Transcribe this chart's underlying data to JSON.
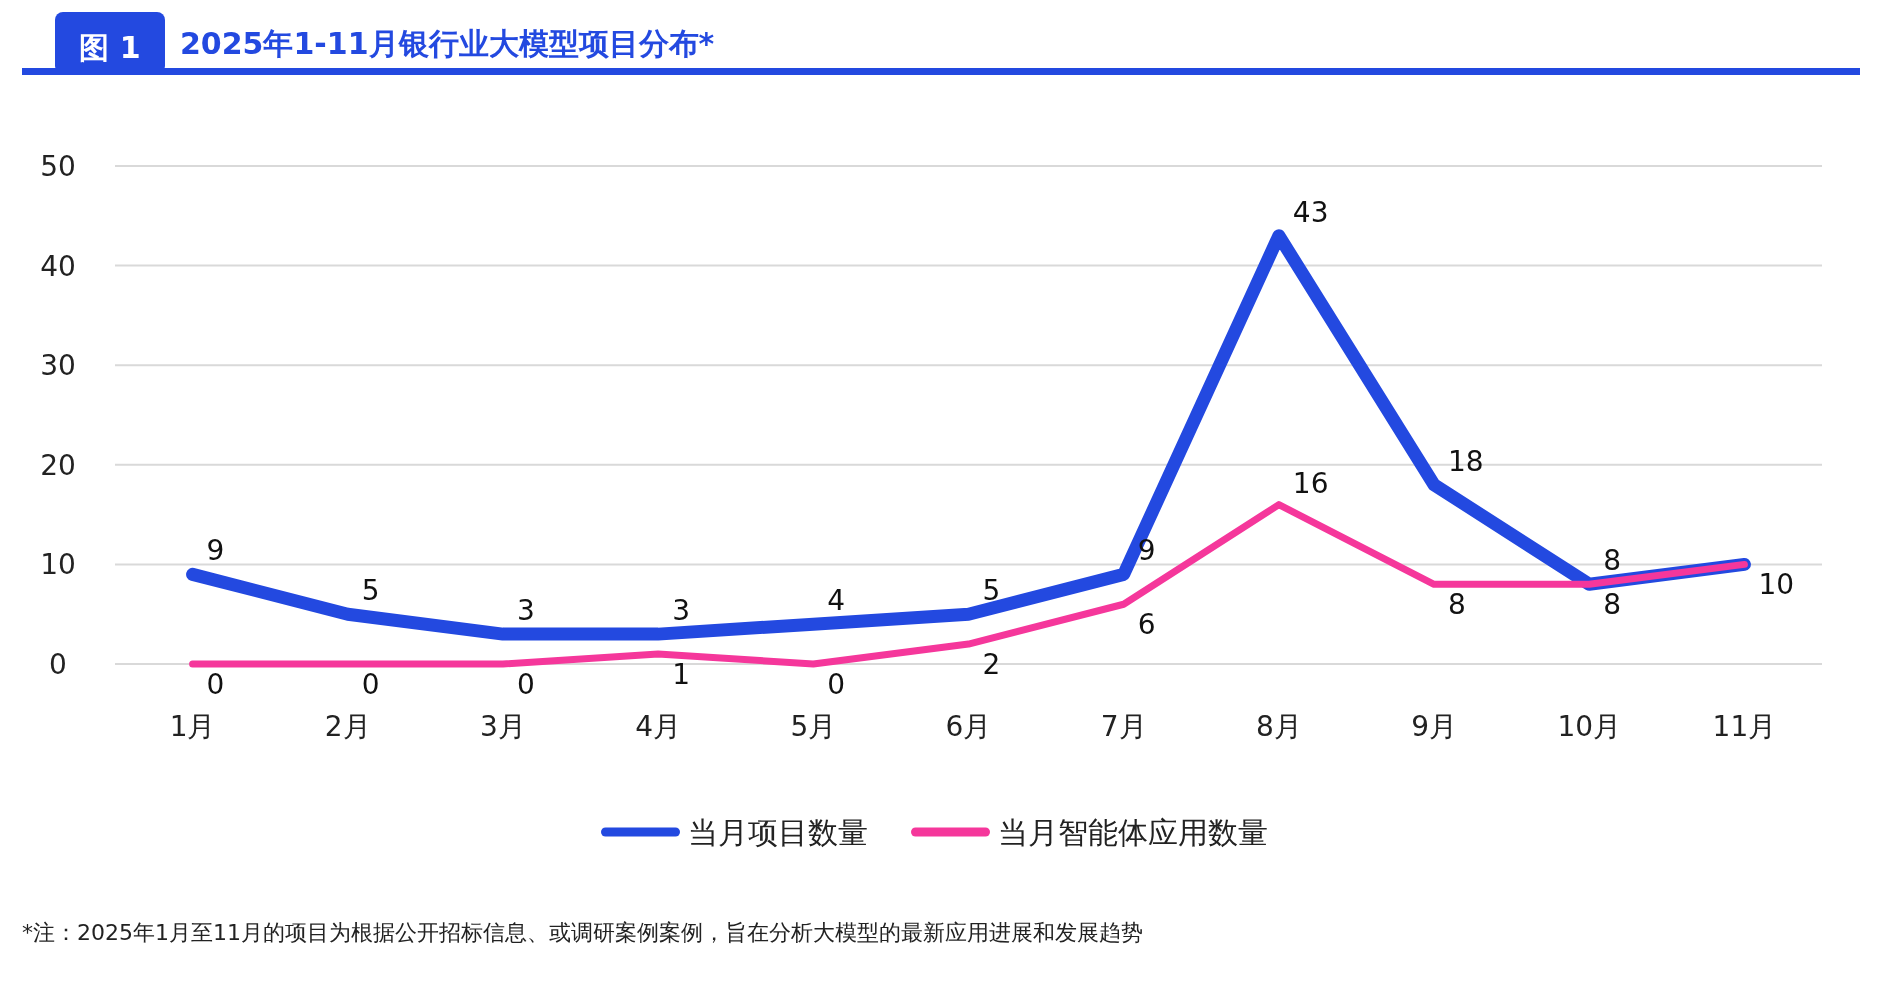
{
  "chart_data": {
    "type": "line",
    "title": "2025年1-11月银行业大模型项目分布*",
    "annotations": [
      "图 1",
      "*注：2025年1月至11月的项目为根据公开招标信息、或调研案例案例，旨在分析大模型的最新应用进展和发展趋势"
    ],
    "categories": [
      "1月",
      "2月",
      "3月",
      "4月",
      "5月",
      "6月",
      "7月",
      "8月",
      "9月",
      "10月",
      "11月"
    ],
    "series": [
      {
        "name": "当月项目数量",
        "color": "#2349e0",
        "values": [
          9,
          5,
          3,
          3,
          4,
          5,
          9,
          43,
          18,
          8,
          10
        ],
        "value_labels": [
          "9",
          "5",
          "3",
          "3",
          "4",
          "5",
          "9",
          "43",
          "18",
          "8",
          null
        ]
      },
      {
        "name": "当月智能体应用数量",
        "color": "#f5379b",
        "values": [
          0,
          0,
          0,
          1,
          0,
          2,
          6,
          16,
          8,
          8,
          10
        ],
        "value_labels": [
          "0",
          "0",
          "0",
          "1",
          "0",
          "2",
          "6",
          "16",
          "8",
          "8",
          "10"
        ]
      }
    ],
    "ylim": [
      0,
      50
    ],
    "yticks": [
      0,
      10,
      20,
      30,
      40,
      50
    ],
    "grid": "y",
    "legend": "bottom",
    "marker": "none",
    "line_style": "solid"
  }
}
